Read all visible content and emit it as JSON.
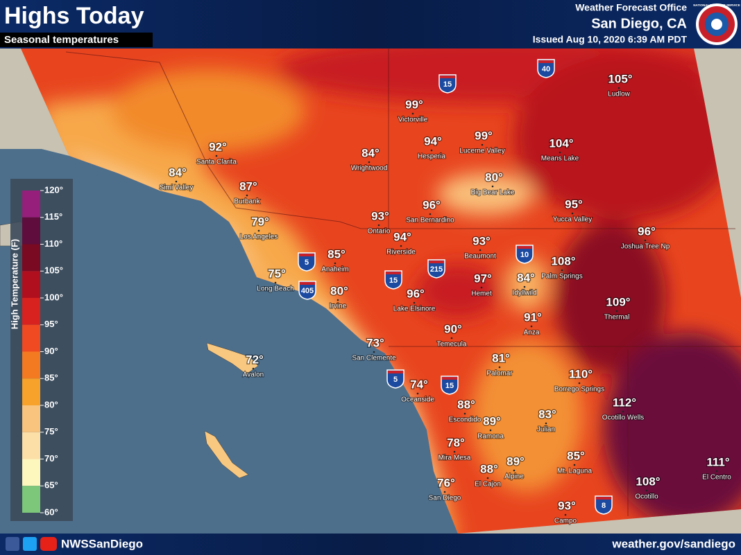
{
  "header": {
    "title": "Highs Today",
    "subtitle": "Seasonal temperatures",
    "office": "Weather Forecast Office",
    "location": "San Diego, CA",
    "issued": "Issued Aug 10, 2020 6:39 AM PDT",
    "logo_text": "NATIONAL WEATHER SERVICE"
  },
  "legend": {
    "title": "High Temperature (F)",
    "ticks": [
      "120°",
      "115°",
      "110°",
      "105°",
      "100°",
      "95°",
      "90°",
      "85°",
      "80°",
      "75°",
      "70°",
      "65°",
      "60°"
    ]
  },
  "cities": [
    {
      "name": "Victorville",
      "temp": "99°"
    },
    {
      "name": "Hesperia",
      "temp": "94°"
    },
    {
      "name": "Lucerne Valley",
      "temp": "99°"
    },
    {
      "name": "Ludlow",
      "temp": "105°"
    },
    {
      "name": "Means Lake",
      "temp": "104°"
    },
    {
      "name": "Wrightwood",
      "temp": "84°"
    },
    {
      "name": "Santa Clarita",
      "temp": "92°"
    },
    {
      "name": "Simi Valley",
      "temp": "84°"
    },
    {
      "name": "Burbank",
      "temp": "87°"
    },
    {
      "name": "Big Bear Lake",
      "temp": "80°"
    },
    {
      "name": "Yucca Valley",
      "temp": "95°"
    },
    {
      "name": "Ontario",
      "temp": "93°"
    },
    {
      "name": "San Bernardino",
      "temp": "96°"
    },
    {
      "name": "Los Angeles",
      "temp": "79°"
    },
    {
      "name": "Joshua Tree Np",
      "temp": "96°"
    },
    {
      "name": "Riverside",
      "temp": "94°"
    },
    {
      "name": "Beaumont",
      "temp": "93°"
    },
    {
      "name": "Anaheim",
      "temp": "85°"
    },
    {
      "name": "Palm Springs",
      "temp": "108°"
    },
    {
      "name": "Long Beach",
      "temp": "75°"
    },
    {
      "name": "Irvine",
      "temp": "80°"
    },
    {
      "name": "Hemet",
      "temp": "97°"
    },
    {
      "name": "Idyllwild",
      "temp": "84°"
    },
    {
      "name": "Lake Elsinore",
      "temp": "96°"
    },
    {
      "name": "Thermal",
      "temp": "109°"
    },
    {
      "name": "Anza",
      "temp": "91°"
    },
    {
      "name": "Temecula",
      "temp": "90°"
    },
    {
      "name": "San Clemente",
      "temp": "73°"
    },
    {
      "name": "Avalon",
      "temp": "72°"
    },
    {
      "name": "Palomar",
      "temp": "81°"
    },
    {
      "name": "Borrego Springs",
      "temp": "110°"
    },
    {
      "name": "Oceanside",
      "temp": "74°"
    },
    {
      "name": "Ocotillo Wells",
      "temp": "112°"
    },
    {
      "name": "Escondido",
      "temp": "88°"
    },
    {
      "name": "Ramona",
      "temp": "89°"
    },
    {
      "name": "Julian",
      "temp": "83°"
    },
    {
      "name": "Mira Mesa",
      "temp": "78°"
    },
    {
      "name": "Mt. Laguna",
      "temp": "85°"
    },
    {
      "name": "El Centro",
      "temp": "111°"
    },
    {
      "name": "Alpine",
      "temp": "89°"
    },
    {
      "name": "El Cajon",
      "temp": "88°"
    },
    {
      "name": "Ocotillo",
      "temp": "108°"
    },
    {
      "name": "San Diego",
      "temp": "76°"
    },
    {
      "name": "Campo",
      "temp": "93°"
    }
  ],
  "interstates": [
    "15",
    "40",
    "5",
    "10",
    "215",
    "15",
    "405",
    "5",
    "15",
    "8"
  ],
  "footer": {
    "handle": "NWSSanDiego",
    "url": "weather.gov/sandiego"
  }
}
